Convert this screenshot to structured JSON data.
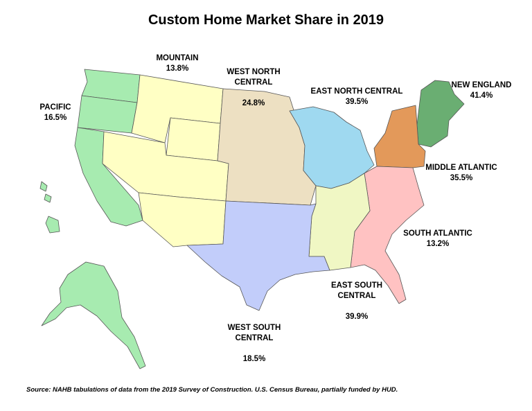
{
  "title": "Custom Home Market Share in 2019",
  "source": "Source: NAHB tabulations of data from the 2019 Survey of Construction. U.S. Census Bureau, partially funded by HUD.",
  "regions": {
    "pacific": {
      "name": "PACIFIC",
      "share": "16.5%",
      "color": "#a7ebb0"
    },
    "mountain": {
      "name": "MOUNTAIN",
      "share": "13.8%",
      "color": "#ffffc4"
    },
    "west_north_central": {
      "name": "WEST NORTH\nCENTRAL",
      "share": "24.8%",
      "color": "#ede0c2"
    },
    "east_north_central": {
      "name": "EAST NORTH CENTRAL",
      "share": "39.5%",
      "color": "#9fd9f0"
    },
    "new_england": {
      "name": "NEW ENGLAND",
      "share": "41.4%",
      "color": "#6aae72"
    },
    "middle_atlantic": {
      "name": "MIDDLE ATLANTIC",
      "share": "35.5%",
      "color": "#e3995a"
    },
    "south_atlantic": {
      "name": "SOUTH ATLANTIC",
      "share": "13.2%",
      "color": "#ffc2c2"
    },
    "east_south_central": {
      "name": "EAST SOUTH\nCENTRAL",
      "share": "39.9%",
      "color": "#f0f7c4"
    },
    "west_south_central": {
      "name": "WEST SOUTH\nCENTRAL",
      "share": "18.5%",
      "color": "#c2cdfa"
    }
  }
}
